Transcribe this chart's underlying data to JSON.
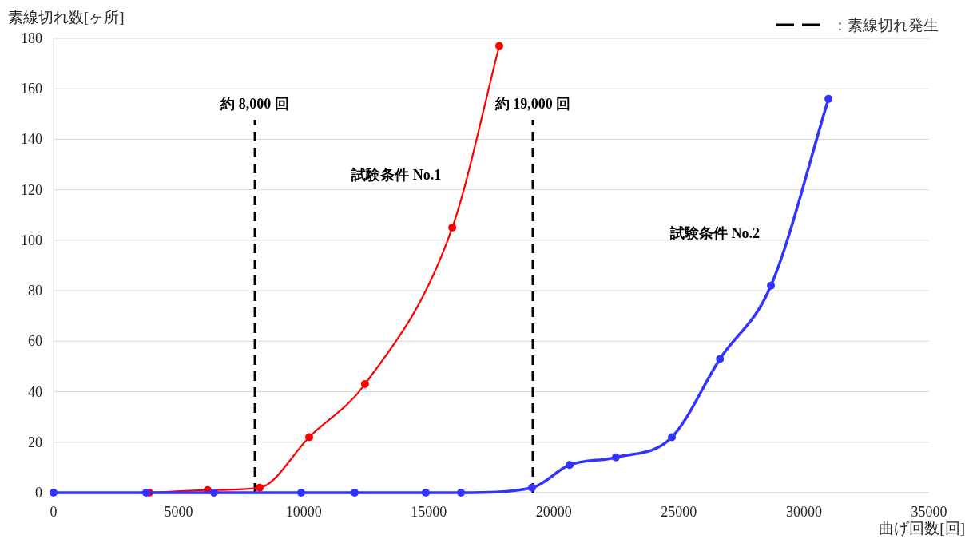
{
  "chart_data": {
    "type": "line",
    "xlabel": "曲げ回数[回]",
    "ylabel": "素線切れ数[ヶ所]",
    "xlim": [
      0,
      35000
    ],
    "xticks": [
      0,
      5000,
      10000,
      15000,
      20000,
      25000,
      30000,
      35000
    ],
    "ylim": [
      0,
      180
    ],
    "yticks": [
      0,
      20,
      40,
      60,
      80,
      100,
      120,
      140,
      160,
      180
    ],
    "grid": "y",
    "marker": "circle",
    "line_style": "solid",
    "legend": "top right",
    "legend_title": "：素線切れ発生",
    "series": [
      {
        "name": "試験条件 No.1",
        "color": "#ff0000",
        "x": [
          3830,
          6160,
          8240,
          10220,
          12450,
          15940,
          17820
        ],
        "values": [
          0,
          1,
          2,
          22,
          43,
          105,
          177
        ]
      },
      {
        "name": "試験条件 No.2",
        "color": "#3333ff",
        "x": [
          0,
          3700,
          6420,
          9900,
          12040,
          14880,
          16290,
          19130,
          20630,
          22480,
          24720,
          26640,
          28680,
          30980
        ],
        "values": [
          0,
          0,
          0,
          0,
          0,
          0,
          0,
          2,
          11,
          14,
          22,
          53,
          82,
          156
        ]
      }
    ],
    "ref_lines": [
      {
        "axis": "x",
        "value": 8050,
        "label": "約 8,000 回",
        "color": "#000000",
        "line_style": "dashed"
      },
      {
        "axis": "x",
        "value": 19160,
        "label": "約 19,000 回",
        "color": "#000000",
        "line_style": "dashed"
      }
    ]
  }
}
